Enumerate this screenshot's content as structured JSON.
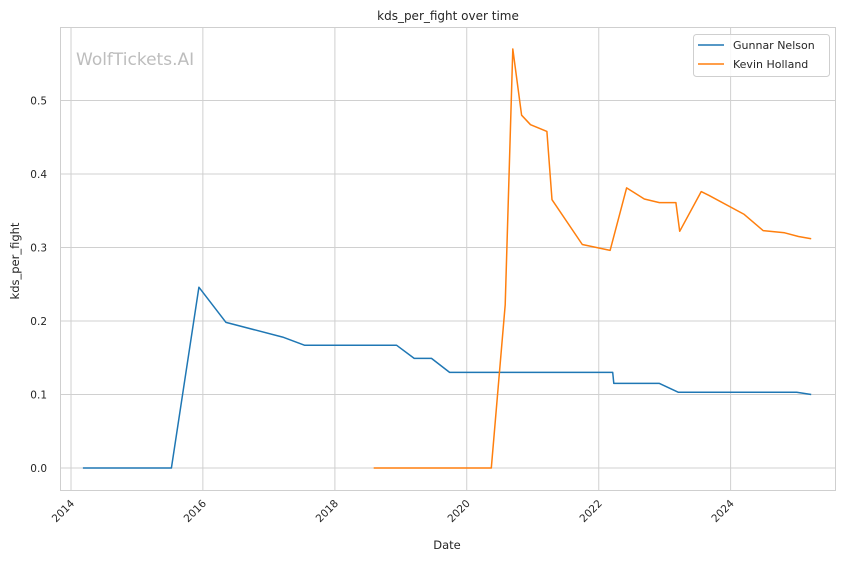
{
  "chart_data": {
    "type": "line",
    "title": "kds_per_fight over time",
    "xlabel": "Date",
    "ylabel": "kds_per_fight",
    "watermark": "WolfTickets.AI",
    "grid": true,
    "legend_position": "top-right",
    "x_ticks": [
      "2014",
      "2016",
      "2018",
      "2020",
      "2022",
      "2024"
    ],
    "y_ticks": [
      "0.0",
      "0.1",
      "0.2",
      "0.3",
      "0.4",
      "0.5"
    ],
    "xlim": [
      "2013-11-01",
      "2025-08-01"
    ],
    "ylim": [
      -0.03,
      0.6
    ],
    "series": [
      {
        "name": "Gunnar Nelson",
        "color": "#1f77b4",
        "points": [
          [
            "2014-03-08",
            0.0
          ],
          [
            "2015-07-11",
            0.0
          ],
          [
            "2015-12-10",
            0.246
          ],
          [
            "2016-05-08",
            0.198
          ],
          [
            "2017-03-18",
            0.178
          ],
          [
            "2017-07-16",
            0.167
          ],
          [
            "2018-12-08",
            0.167
          ],
          [
            "2019-03-16",
            0.149
          ],
          [
            "2019-06-20",
            0.149
          ],
          [
            "2019-09-28",
            0.13
          ],
          [
            "2022-03-19",
            0.13
          ],
          [
            "2022-03-25",
            0.115
          ],
          [
            "2022-12-03",
            0.115
          ],
          [
            "2023-03-18",
            0.103
          ],
          [
            "2025-01-01",
            0.103
          ],
          [
            "2025-03-22",
            0.1
          ]
        ]
      },
      {
        "name": "Kevin Holland",
        "color": "#ff7f0e",
        "points": [
          [
            "2018-08-04",
            0.0
          ],
          [
            "2020-05-16",
            0.0
          ],
          [
            "2020-08-01",
            0.222
          ],
          [
            "2020-09-12",
            0.57
          ],
          [
            "2020-10-31",
            0.48
          ],
          [
            "2020-12-19",
            0.467
          ],
          [
            "2021-03-20",
            0.458
          ],
          [
            "2021-04-17",
            0.365
          ],
          [
            "2021-10-02",
            0.304
          ],
          [
            "2022-03-05",
            0.296
          ],
          [
            "2022-06-04",
            0.381
          ],
          [
            "2022-09-10",
            0.366
          ],
          [
            "2022-12-03",
            0.361
          ],
          [
            "2023-03-04",
            0.361
          ],
          [
            "2023-03-25",
            0.322
          ],
          [
            "2023-07-22",
            0.376
          ],
          [
            "2023-09-02",
            0.371
          ],
          [
            "2024-03-16",
            0.345
          ],
          [
            "2024-06-29",
            0.323
          ],
          [
            "2024-10-26",
            0.32
          ],
          [
            "2025-01-11",
            0.315
          ],
          [
            "2025-03-22",
            0.312
          ]
        ]
      }
    ]
  }
}
